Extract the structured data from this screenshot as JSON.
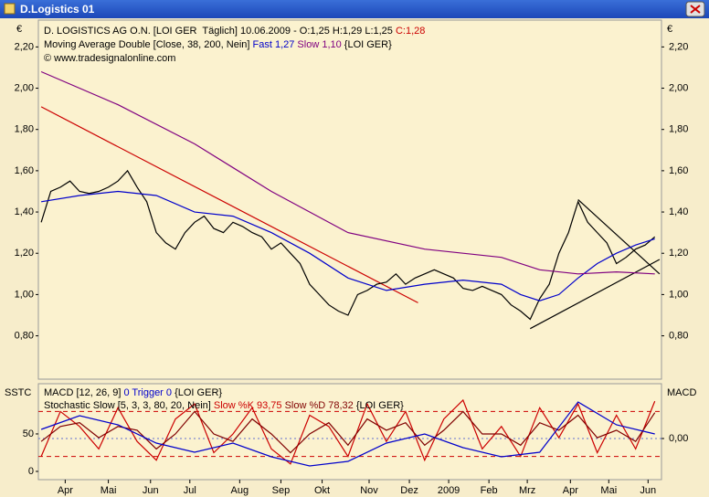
{
  "window": {
    "title": "D.Logistics 01"
  },
  "chart_data": [
    {
      "type": "line",
      "header": [
        [
          "D. LOGISTICS AG O.N. [LOI GER  Täglich] 10.06.2009 - O:1,25 H:1,29 L:1,25 ",
          "C:1,28"
        ],
        [
          "Moving Average Double [Close, 38, 200, Nein] ",
          "Fast 1,27",
          " ",
          "Slow 1,10",
          " {LOI GER}"
        ],
        [
          "© www.tradesignalonline.com"
        ]
      ],
      "header_colors": [
        [
          "#000000",
          "#cc0000"
        ],
        [
          "#000000",
          "#0000cc",
          "#000000",
          "#800080",
          "#000000"
        ],
        [
          "#000000"
        ]
      ],
      "ylabel_left": "€",
      "ylabel_right": "€",
      "xlim": [
        -0.3,
        64.7
      ],
      "ylim": [
        0.59,
        2.33
      ],
      "yticks": [
        {
          "value": 0.8,
          "label": "0,80"
        },
        {
          "value": 1.0,
          "label": "1,00"
        },
        {
          "value": 1.2,
          "label": "1,20"
        },
        {
          "value": 1.4,
          "label": "1,40"
        },
        {
          "value": 1.6,
          "label": "1,60"
        },
        {
          "value": 1.8,
          "label": "1,80"
        },
        {
          "value": 2.0,
          "label": "2,00"
        },
        {
          "value": 2.2,
          "label": "2,20"
        }
      ],
      "x": [
        0,
        1,
        2,
        3,
        4,
        5,
        6,
        7,
        8,
        9,
        10,
        11,
        12,
        13,
        14,
        15,
        16,
        17,
        18,
        19,
        20,
        21,
        22,
        23,
        24,
        25,
        26,
        27,
        28,
        29,
        30,
        31,
        32,
        33,
        34,
        35,
        36,
        37,
        38,
        39,
        40,
        41,
        42,
        43,
        44,
        45,
        46,
        47,
        48,
        49,
        50,
        51,
        52,
        53,
        54,
        55,
        56,
        57,
        58,
        59,
        60,
        61,
        62,
        63,
        64
      ],
      "series": [
        {
          "color": "#000000",
          "values": [
            1.35,
            1.5,
            1.52,
            1.55,
            1.5,
            1.49,
            1.5,
            1.52,
            1.55,
            1.6,
            1.52,
            1.45,
            1.3,
            1.25,
            1.22,
            1.3,
            1.35,
            1.38,
            1.32,
            1.3,
            1.35,
            1.33,
            1.3,
            1.28,
            1.22,
            1.25,
            1.2,
            1.15,
            1.05,
            1.0,
            0.95,
            0.92,
            0.9,
            1.0,
            1.02,
            1.05,
            1.06,
            1.1,
            1.05,
            1.08,
            1.1,
            1.12,
            1.1,
            1.08,
            1.03,
            1.02,
            1.04,
            1.02,
            1.0,
            0.95,
            0.92,
            0.88,
            0.98,
            1.05,
            1.2,
            1.3,
            1.45,
            1.35,
            1.3,
            1.25,
            1.15,
            1.18,
            1.22,
            1.24,
            1.28
          ]
        },
        {
          "name": "Fast 1,27",
          "color": "#0000cc",
          "x": [
            0,
            4,
            8,
            12,
            16,
            20,
            24,
            28,
            32,
            36,
            40,
            44,
            48,
            50,
            52,
            54,
            56,
            58,
            60,
            62,
            64
          ],
          "values": [
            1.45,
            1.48,
            1.5,
            1.48,
            1.4,
            1.38,
            1.3,
            1.2,
            1.08,
            1.02,
            1.05,
            1.07,
            1.05,
            1.0,
            0.97,
            1.0,
            1.08,
            1.15,
            1.2,
            1.24,
            1.27
          ]
        },
        {
          "name": "Slow 1,10",
          "color": "#800080",
          "x": [
            0,
            8,
            16,
            24,
            32,
            40,
            48,
            52,
            56,
            60,
            64
          ],
          "values": [
            2.08,
            1.92,
            1.73,
            1.5,
            1.3,
            1.22,
            1.18,
            1.12,
            1.1,
            1.11,
            1.1
          ]
        }
      ],
      "trendlines": [
        {
          "color": "#cc0000",
          "x": [
            0,
            39.3
          ],
          "values": [
            1.91,
            0.96
          ]
        },
        {
          "color": "#000000",
          "x": [
            51,
            64.5
          ],
          "values": [
            0.835,
            1.17
          ]
        },
        {
          "color": "#000000",
          "x": [
            56,
            64.5
          ],
          "values": [
            1.46,
            1.1
          ]
        }
      ]
    },
    {
      "type": "line",
      "header": [
        [
          "MACD [12, 26, 9] ",
          "0 Trigger 0",
          " {LOI GER}"
        ],
        [
          "Stochastic Slow [5, 3, 3, 80, 20, Nein] ",
          "Slow %K 93,75",
          " ",
          "Slow %D 78,32",
          " {LOI GER}"
        ]
      ],
      "header_colors": [
        [
          "#000000",
          "#0000cc",
          "#000000"
        ],
        [
          "#000000",
          "#cc0000",
          "#000000",
          "#800000",
          "#000000"
        ]
      ],
      "ylabel_left": "SSTC",
      "ylabel_right": "MACD",
      "xlim": [
        -0.3,
        64.7
      ],
      "ylim": [
        -11,
        117
      ],
      "yticks": [
        0,
        50
      ],
      "y2lim": [
        -0.09,
        0.12
      ],
      "y2ticks": [
        {
          "value": 0,
          "label": "0,00"
        }
      ],
      "levels": [
        80,
        20
      ],
      "level_color": "#cc0000",
      "xticks": [
        {
          "value": 2.5,
          "label": "Apr"
        },
        {
          "value": 7.0,
          "label": "Mai"
        },
        {
          "value": 11.4,
          "label": "Jun"
        },
        {
          "value": 15.5,
          "label": "Jul"
        },
        {
          "value": 20.7,
          "label": "Aug"
        },
        {
          "value": 25.0,
          "label": "Sep"
        },
        {
          "value": 29.3,
          "label": "Okt"
        },
        {
          "value": 34.2,
          "label": "Nov"
        },
        {
          "value": 38.4,
          "label": "Dez"
        },
        {
          "value": 42.5,
          "label": "2009"
        },
        {
          "value": 46.7,
          "label": "Feb"
        },
        {
          "value": 50.7,
          "label": "Mrz"
        },
        {
          "value": 55.2,
          "label": "Apr"
        },
        {
          "value": 59.2,
          "label": "Mai"
        },
        {
          "value": 63.3,
          "label": "Jun"
        }
      ],
      "series": [
        {
          "color": "#cc0000",
          "x": [
            0,
            2,
            4,
            6,
            8,
            10,
            12,
            14,
            16,
            18,
            20,
            22,
            24,
            26,
            28,
            30,
            32,
            34,
            36,
            38,
            40,
            42,
            44,
            46,
            48,
            50,
            52,
            54,
            56,
            58,
            60,
            62,
            64
          ],
          "values": [
            20,
            80,
            60,
            30,
            85,
            40,
            15,
            70,
            90,
            25,
            50,
            85,
            30,
            10,
            75,
            60,
            20,
            90,
            40,
            80,
            15,
            70,
            95,
            30,
            60,
            20,
            85,
            45,
            90,
            25,
            75,
            30,
            93.75
          ]
        },
        {
          "color": "#800000",
          "x": [
            0,
            2,
            4,
            6,
            8,
            10,
            12,
            14,
            16,
            18,
            20,
            22,
            24,
            26,
            28,
            30,
            32,
            34,
            36,
            38,
            40,
            42,
            44,
            46,
            48,
            50,
            52,
            54,
            56,
            58,
            60,
            62,
            64
          ],
          "values": [
            40,
            60,
            65,
            45,
            60,
            55,
            30,
            50,
            80,
            50,
            40,
            70,
            50,
            25,
            50,
            65,
            35,
            70,
            55,
            65,
            35,
            55,
            80,
            50,
            50,
            35,
            65,
            55,
            75,
            45,
            55,
            40,
            78.32
          ]
        },
        {
          "color": "#0000cc",
          "axis": "y2",
          "x": [
            0,
            4,
            8,
            12,
            16,
            20,
            24,
            28,
            32,
            36,
            40,
            44,
            48,
            52,
            56,
            60,
            64
          ],
          "values": [
            0.02,
            0.05,
            0.03,
            -0.01,
            -0.03,
            -0.01,
            -0.04,
            -0.06,
            -0.05,
            -0.01,
            0.01,
            -0.02,
            -0.04,
            -0.03,
            0.08,
            0.03,
            0.01
          ]
        }
      ]
    }
  ]
}
